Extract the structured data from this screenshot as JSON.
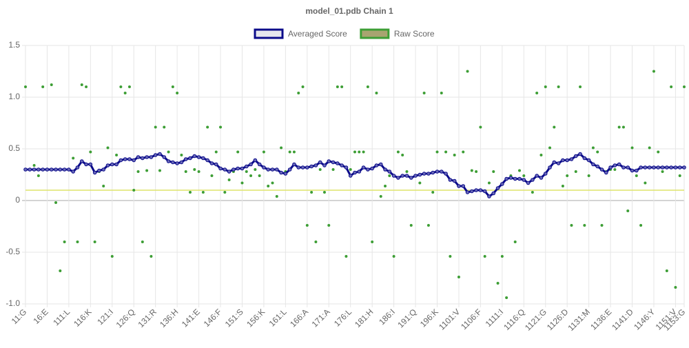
{
  "chart_data": {
    "type": "line",
    "title": "model_01.pdb Chain 1",
    "categories": [
      "11:G",
      null,
      null,
      null,
      null,
      "16:E",
      null,
      null,
      null,
      null,
      "111:L",
      null,
      null,
      null,
      null,
      "116:K",
      null,
      null,
      null,
      null,
      "121:I",
      null,
      null,
      null,
      null,
      "126:Q",
      null,
      null,
      null,
      null,
      "131:R",
      null,
      null,
      null,
      null,
      "136:H",
      null,
      null,
      null,
      null,
      "141:E",
      null,
      null,
      null,
      null,
      "146:F",
      null,
      null,
      null,
      null,
      "151:S",
      null,
      null,
      null,
      null,
      "156:K",
      null,
      null,
      null,
      null,
      "161:L",
      null,
      null,
      null,
      null,
      "166:A",
      null,
      null,
      null,
      null,
      "171:A",
      null,
      null,
      null,
      null,
      "176:L",
      null,
      null,
      null,
      null,
      "181:H",
      null,
      null,
      null,
      null,
      "186:I",
      null,
      null,
      null,
      null,
      "191:Q",
      null,
      null,
      null,
      null,
      "196:K",
      null,
      null,
      null,
      null,
      "1101:V",
      null,
      null,
      null,
      null,
      "1106:F",
      null,
      null,
      null,
      null,
      "1111:I",
      null,
      null,
      null,
      null,
      "1116:Q",
      null,
      null,
      null,
      null,
      "1121:G",
      null,
      null,
      null,
      null,
      "1126:D",
      null,
      null,
      null,
      null,
      "1131:M",
      null,
      null,
      null,
      null,
      "1136:E",
      null,
      null,
      null,
      null,
      "1141:D",
      null,
      null,
      null,
      null,
      "1146:Y",
      null,
      null,
      null,
      null,
      "1151:V",
      null,
      "1153:G"
    ],
    "series": [
      {
        "name": "Averaged Score",
        "style": "line",
        "color": "#0b0b8a",
        "legend_fill": "#e6e6ee",
        "values": [
          0.3,
          0.3,
          0.3,
          0.3,
          0.3,
          0.3,
          0.3,
          0.3,
          0.3,
          0.3,
          0.3,
          0.28,
          0.32,
          0.38,
          0.35,
          0.35,
          0.27,
          0.29,
          0.3,
          0.34,
          0.35,
          0.35,
          0.39,
          0.4,
          0.4,
          0.39,
          0.42,
          0.41,
          0.42,
          0.42,
          0.44,
          0.45,
          0.42,
          0.38,
          0.37,
          0.36,
          0.37,
          0.4,
          0.41,
          0.43,
          0.42,
          0.41,
          0.39,
          0.36,
          0.35,
          0.31,
          0.3,
          0.28,
          0.3,
          0.31,
          0.31,
          0.33,
          0.35,
          0.39,
          0.35,
          0.32,
          0.3,
          0.3,
          0.3,
          0.27,
          0.26,
          0.3,
          0.35,
          0.32,
          0.32,
          0.32,
          0.33,
          0.34,
          0.37,
          0.34,
          0.38,
          0.37,
          0.36,
          0.34,
          0.32,
          0.24,
          0.27,
          0.28,
          0.32,
          0.3,
          0.31,
          0.34,
          0.35,
          0.3,
          0.28,
          0.24,
          0.22,
          0.24,
          0.24,
          0.22,
          0.24,
          0.25,
          0.26,
          0.26,
          0.27,
          0.28,
          0.28,
          0.26,
          0.2,
          0.19,
          0.14,
          0.14,
          0.08,
          0.09,
          0.1,
          0.1,
          0.09,
          0.04,
          0.07,
          0.12,
          0.16,
          0.21,
          0.22,
          0.21,
          0.21,
          0.2,
          0.17,
          0.2,
          0.24,
          0.22,
          0.26,
          0.32,
          0.37,
          0.36,
          0.39,
          0.39,
          0.4,
          0.43,
          0.45,
          0.41,
          0.39,
          0.35,
          0.33,
          0.3,
          0.27,
          0.32,
          0.34,
          0.35,
          0.32,
          0.32,
          0.29,
          0.29,
          0.32,
          0.32,
          0.32,
          0.32,
          0.32,
          0.32,
          0.32,
          0.32,
          0.32,
          0.32,
          0.32
        ]
      },
      {
        "name": "Raw Score",
        "style": "points",
        "color": "#3d9e35",
        "legend_fill": "#a8a470",
        "values": [
          1.1,
          0.3,
          0.34,
          0.24,
          1.1,
          0.3,
          1.12,
          -0.02,
          -0.68,
          -0.4,
          0.3,
          0.41,
          -0.4,
          1.12,
          1.1,
          0.47,
          -0.4,
          0.28,
          0.14,
          0.51,
          -0.54,
          0.44,
          1.1,
          1.04,
          1.1,
          0.1,
          0.28,
          -0.4,
          0.29,
          -0.54,
          0.71,
          0.29,
          0.71,
          0.47,
          1.1,
          1.04,
          0.44,
          0.28,
          0.08,
          0.3,
          0.28,
          0.08,
          0.71,
          0.24,
          0.47,
          0.71,
          0.08,
          0.2,
          0.28,
          0.47,
          0.17,
          0.28,
          0.24,
          0.3,
          0.24,
          0.47,
          0.14,
          0.17,
          0.04,
          0.51,
          0.28,
          0.47,
          0.47,
          1.04,
          1.1,
          -0.24,
          0.08,
          -0.4,
          0.3,
          0.08,
          -0.24,
          0.3,
          1.1,
          1.1,
          -0.54,
          0.3,
          0.47,
          0.47,
          0.47,
          1.1,
          -0.4,
          1.04,
          0.04,
          0.14,
          0.24,
          -0.54,
          0.47,
          0.44,
          0.28,
          -0.24,
          0.24,
          0.17,
          1.04,
          -0.24,
          0.08,
          0.47,
          1.04,
          0.47,
          -0.54,
          0.44,
          -0.74,
          0.47,
          1.25,
          0.29,
          0.28,
          0.71,
          -0.54,
          0.17,
          0.28,
          -0.8,
          -0.54,
          -0.94,
          0.24,
          -0.4,
          0.29,
          0.24,
          0.17,
          0.08,
          1.04,
          0.44,
          1.1,
          0.51,
          0.71,
          1.1,
          0.14,
          0.24,
          -0.24,
          0.28,
          1.1,
          -0.24,
          0.24,
          0.51,
          0.47,
          -0.24,
          0.28,
          0.3,
          0.3,
          0.71,
          0.71,
          -0.1,
          0.51,
          0.24,
          -0.24,
          0.17,
          0.51,
          1.25,
          0.47,
          0.28,
          -0.68,
          1.1,
          -0.84,
          0.24,
          1.1
        ]
      }
    ],
    "reference_line": {
      "value": 0.1,
      "color": "#dde36a"
    },
    "ylim": [
      -1,
      1.5
    ],
    "yticks": [
      {
        "value": -1,
        "label": "-1.0"
      },
      -0.5,
      0,
      0.5,
      {
        "value": 1,
        "label": "1.0"
      },
      1.5
    ],
    "grid": true,
    "legend": "top"
  }
}
